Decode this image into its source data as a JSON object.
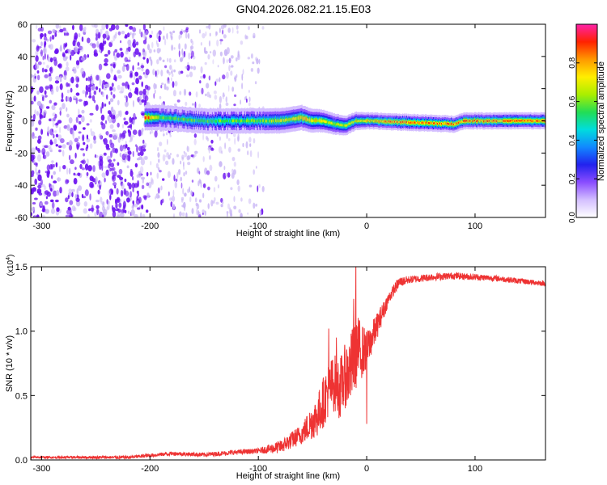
{
  "figure": {
    "title": "GN04.2026.082.21.15.E03"
  },
  "colors": {
    "line": "#ee3333",
    "scatter_strong": "#6a0ff0",
    "scatter_weak": "#c7b3f5",
    "frame": "#000000"
  },
  "colorscale": [
    "#ffffff",
    "#d4bfff",
    "#8a4dff",
    "#2222ee",
    "#1188ff",
    "#00dddd",
    "#22dd55",
    "#aaee00",
    "#ffee00",
    "#ff9900",
    "#ff2200",
    "#ff22aa"
  ],
  "chart_data": [
    {
      "type": "heatmap",
      "xlabel": "Height of straight line (km)",
      "ylabel": "Frequency (Hz)",
      "xlim": [
        -310,
        165
      ],
      "ylim": [
        -60,
        60
      ],
      "xticks": [
        -300,
        -200,
        -100,
        0,
        100
      ],
      "xtick_labels": [
        "-300",
        "-200",
        "-100",
        "0",
        "100"
      ],
      "yticks": [
        -60,
        -40,
        -20,
        0,
        20,
        40,
        60
      ],
      "ytick_labels": [
        "-60",
        "-40",
        "-20",
        "0",
        "20",
        "40",
        "60"
      ],
      "colorbar": {
        "label": "Normalized spectral amplitude",
        "range": [
          0,
          1
        ],
        "ticks": [
          0,
          0.2,
          0.4,
          0.6,
          0.8
        ],
        "tick_labels": [
          "0.0",
          "0.2",
          "0.4",
          "0.6",
          "0.8"
        ]
      },
      "ridge": {
        "x_start": -205,
        "x_end": 165,
        "center_freq": [
          [
            -205,
            2
          ],
          [
            -190,
            2
          ],
          [
            -170,
            1
          ],
          [
            -150,
            0
          ],
          [
            -120,
            0
          ],
          [
            -100,
            0
          ],
          [
            -80,
            0
          ],
          [
            -60,
            2
          ],
          [
            -50,
            0
          ],
          [
            -40,
            0
          ],
          [
            -30,
            -2
          ],
          [
            -20,
            -3
          ],
          [
            -10,
            0
          ],
          [
            0,
            0
          ],
          [
            80,
            -2
          ],
          [
            90,
            0
          ],
          [
            165,
            0
          ]
        ],
        "half_width_hz": [
          [
            -205,
            3
          ],
          [
            -150,
            3
          ],
          [
            -60,
            3
          ],
          [
            0,
            2
          ],
          [
            165,
            2
          ]
        ],
        "peak_amplitude": [
          [
            -205,
            0.85
          ],
          [
            -190,
            0.6
          ],
          [
            -150,
            0.55
          ],
          [
            -100,
            0.6
          ],
          [
            -60,
            0.75
          ],
          [
            -30,
            0.65
          ],
          [
            0,
            0.75
          ],
          [
            30,
            0.85
          ],
          [
            80,
            0.85
          ],
          [
            165,
            0.85
          ]
        ]
      },
      "background_noise": {
        "strong_region": [
          -310,
          -200
        ],
        "moderate_region": [
          -200,
          -120
        ],
        "weak_region": [
          -120,
          -95
        ],
        "amplitude_range": [
          0.05,
          0.25
        ]
      }
    },
    {
      "type": "line",
      "xlabel": "Height of straight line (km)",
      "ylabel": "SNR (10 * v/v)",
      "scale_label": "(x10",
      "scale_exponent": "4",
      "scale_close": ")",
      "xlim": [
        -310,
        165
      ],
      "ylim": [
        0,
        1.5
      ],
      "xticks": [
        -300,
        -200,
        -100,
        0,
        100
      ],
      "xtick_labels": [
        "-300",
        "-200",
        "-100",
        "0",
        "100"
      ],
      "yticks": [
        0,
        0.5,
        1.0,
        1.5
      ],
      "ytick_labels": [
        "0.0",
        "0.5",
        "1.0",
        "1.5"
      ],
      "series": [
        {
          "name": "SNR",
          "envelope": [
            [
              -310,
              0.02
            ],
            [
              -220,
              0.02
            ],
            [
              -180,
              0.05
            ],
            [
              -150,
              0.04
            ],
            [
              -120,
              0.06
            ],
            [
              -100,
              0.07
            ],
            [
              -80,
              0.1
            ],
            [
              -70,
              0.15
            ],
            [
              -60,
              0.2
            ],
            [
              -50,
              0.3
            ],
            [
              -45,
              0.35
            ],
            [
              -40,
              0.45
            ],
            [
              -35,
              0.55
            ],
            [
              -30,
              0.6
            ],
            [
              -25,
              0.55
            ],
            [
              -20,
              0.65
            ],
            [
              -15,
              0.7
            ],
            [
              -10,
              0.85
            ],
            [
              -5,
              0.85
            ],
            [
              0,
              0.85
            ],
            [
              5,
              0.95
            ],
            [
              10,
              1.05
            ],
            [
              15,
              1.15
            ],
            [
              20,
              1.25
            ],
            [
              25,
              1.32
            ],
            [
              30,
              1.38
            ],
            [
              40,
              1.4
            ],
            [
              60,
              1.42
            ],
            [
              80,
              1.43
            ],
            [
              100,
              1.42
            ],
            [
              120,
              1.41
            ],
            [
              140,
              1.39
            ],
            [
              165,
              1.37
            ]
          ],
          "noise_amplitude": [
            [
              -310,
              0.008
            ],
            [
              -100,
              0.02
            ],
            [
              -60,
              0.08
            ],
            [
              -40,
              0.2
            ],
            [
              -20,
              0.25
            ],
            [
              -10,
              0.3
            ],
            [
              0,
              0.15
            ],
            [
              20,
              0.05
            ],
            [
              40,
              0.03
            ],
            [
              165,
              0.02
            ]
          ],
          "spikes": [
            [
              -35,
              1.02
            ],
            [
              -28,
              0.95
            ],
            [
              -10,
              1.55
            ],
            [
              -12,
              1.25
            ],
            [
              0,
              0.28
            ]
          ]
        }
      ]
    }
  ]
}
